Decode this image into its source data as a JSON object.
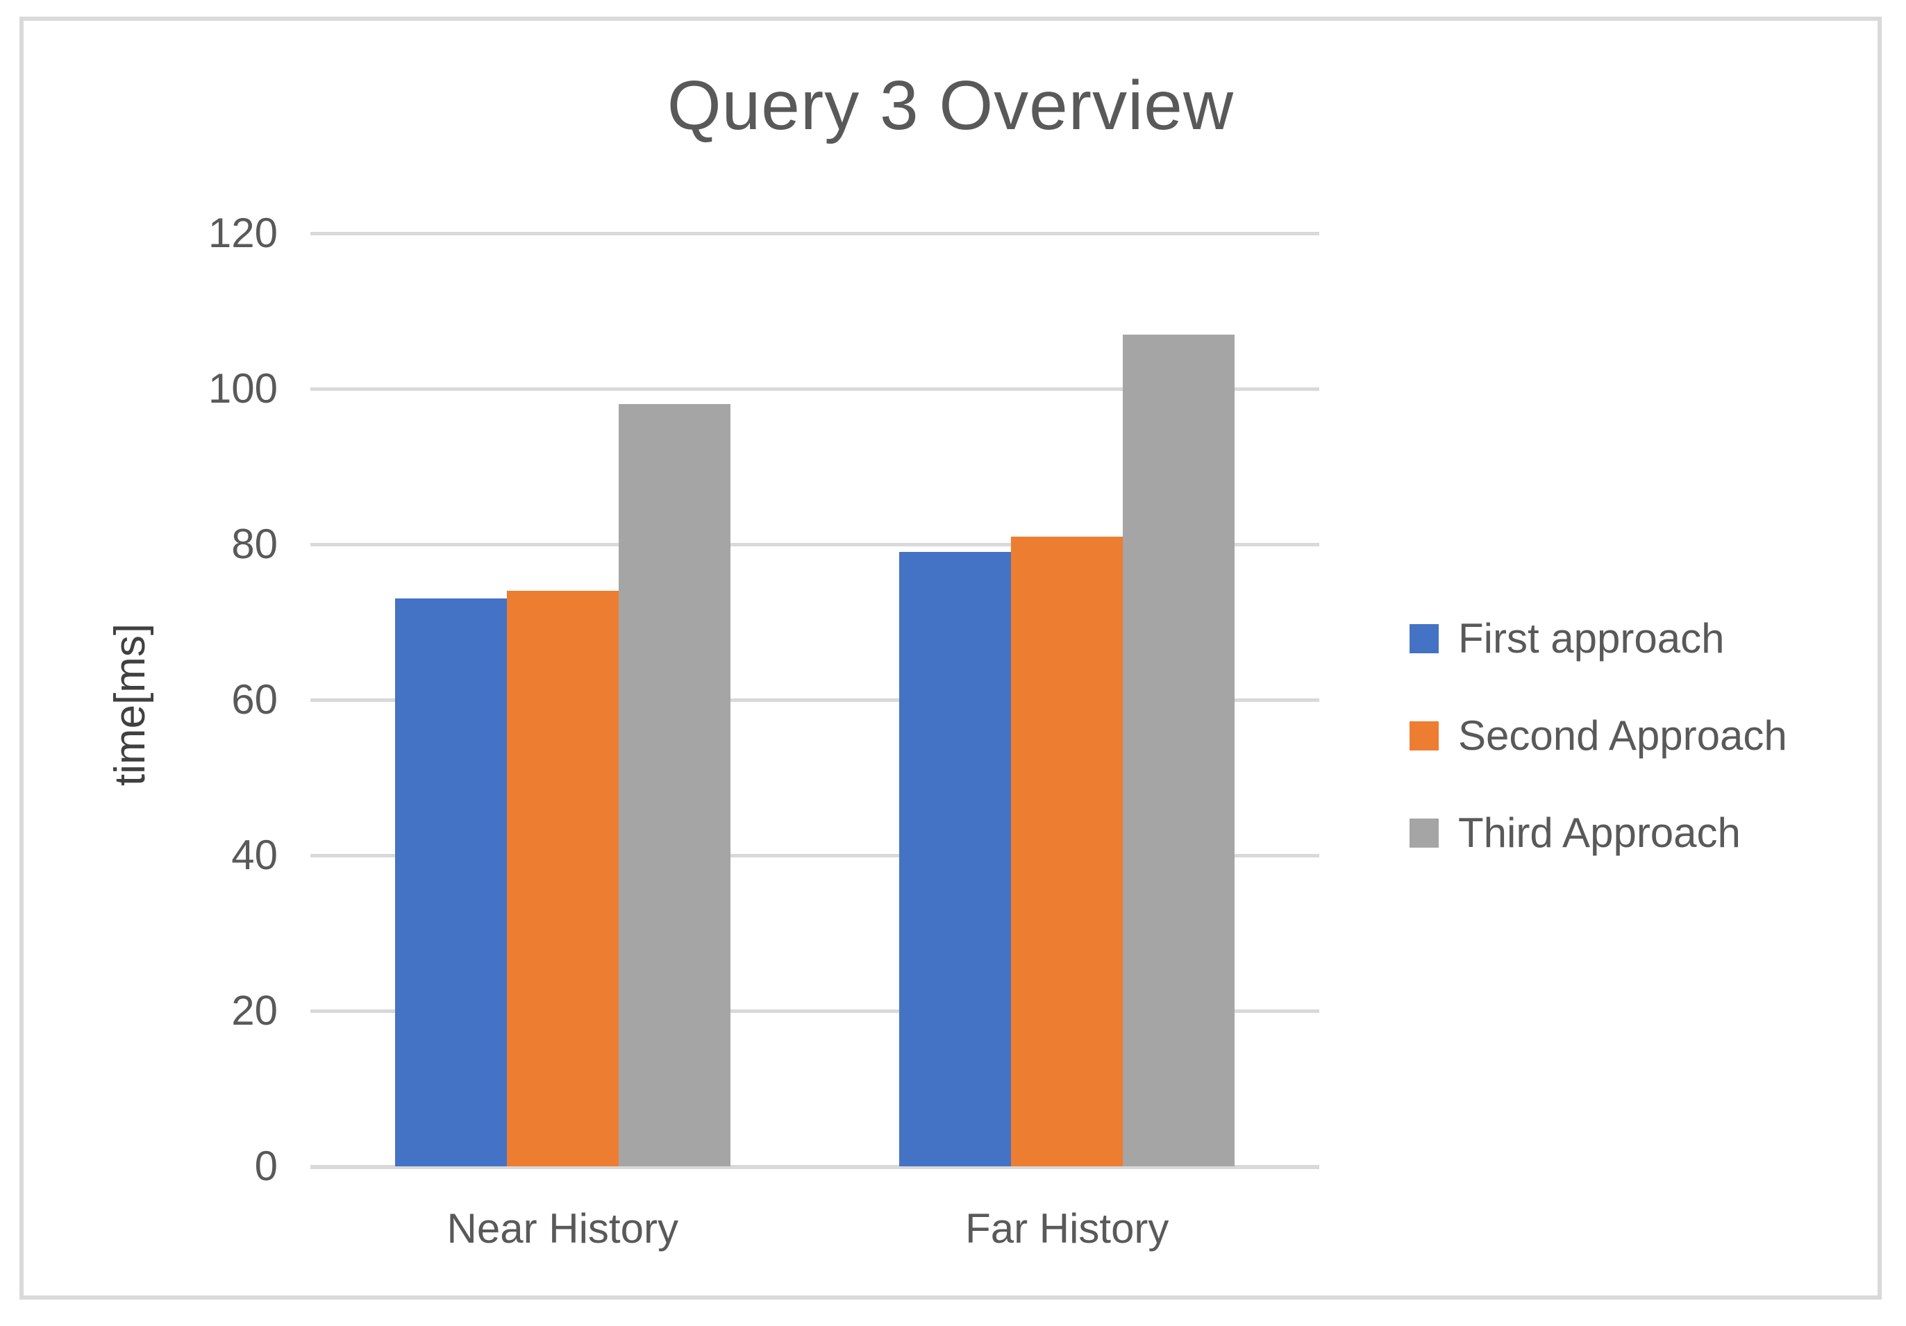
{
  "chart_data": {
    "type": "bar",
    "title": "Query 3 Overview",
    "categories": [
      "Near History",
      "Far History"
    ],
    "series": [
      {
        "name": "First approach",
        "color": "#4472C4",
        "values": [
          73,
          79
        ]
      },
      {
        "name": "Second Approach",
        "color": "#ED7D31",
        "values": [
          74,
          81
        ]
      },
      {
        "name": "Third Approach",
        "color": "#A5A5A5",
        "values": [
          98,
          107
        ]
      }
    ],
    "xlabel": "",
    "ylabel": "time[ms]",
    "ylim": [
      0,
      120
    ],
    "yticks": [
      0,
      20,
      40,
      60,
      80,
      100,
      120
    ],
    "grid": true,
    "legend_position": "right",
    "colors": {
      "gridline": "#D9D9D9",
      "frame_border": "#D9D9D9",
      "text": "#595959"
    }
  }
}
